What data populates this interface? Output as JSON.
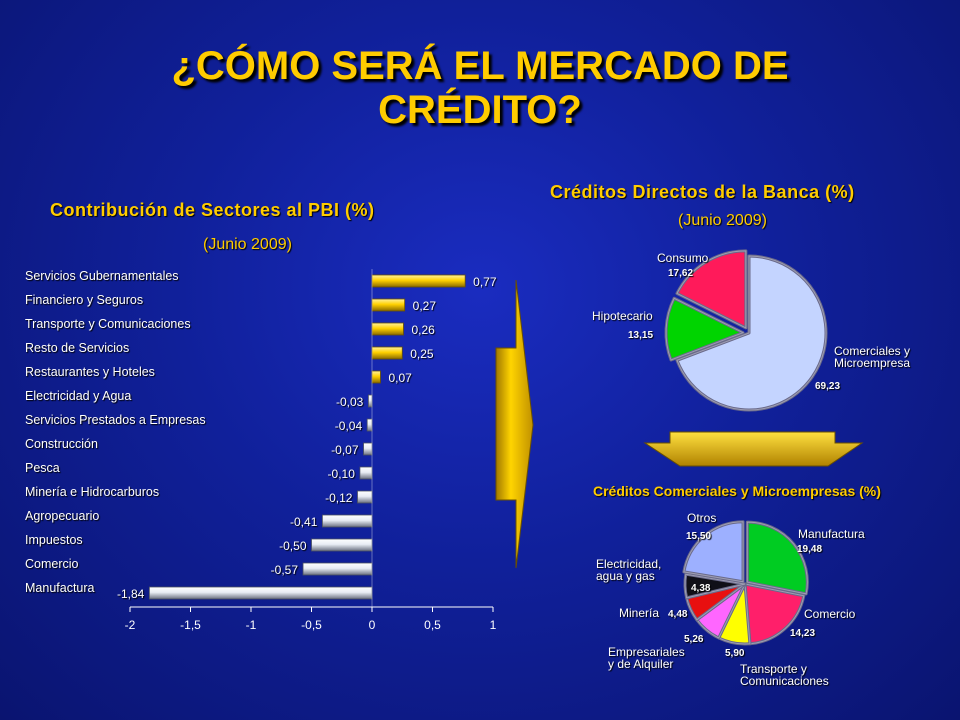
{
  "title": "¿CÓMO SERÁ EL MERCADO DE CRÉDITO?",
  "chart_data": [
    {
      "type": "bar",
      "orientation": "horizontal",
      "title": "Contribución de Sectores al PBI (%)",
      "subtitle": "(Junio 2009)",
      "categories": [
        "Servicios Gubernamentales",
        "Financiero y Seguros",
        "Transporte y Comunicaciones",
        "Resto de Servicios",
        "Restaurantes y Hoteles",
        "Electricidad y Agua",
        "Servicios Prestados a Empresas",
        "Construcción",
        "Pesca",
        "Minería e Hidrocarburos",
        "Agropecuario",
        "Impuestos",
        "Comercio",
        "Manufactura"
      ],
      "values": [
        0.77,
        0.27,
        0.26,
        0.25,
        0.07,
        -0.03,
        -0.04,
        -0.07,
        -0.1,
        -0.12,
        -0.41,
        -0.5,
        -0.57,
        -1.84
      ],
      "value_labels": [
        "0,77",
        "0,27",
        "0,26",
        "0,25",
        "0,07",
        "-0,03",
        "-0,04",
        "-0,07",
        "-0,10",
        "-0,12",
        "-0,41",
        "-0,50",
        "-0,57",
        "-1,84"
      ],
      "xlim": [
        -2,
        1
      ],
      "xticks": [
        -2,
        -1.5,
        -1,
        -0.5,
        0,
        0.5,
        1
      ],
      "xtick_labels": [
        "-2",
        "-1,5",
        "-1",
        "-0,5",
        "0",
        "0,5",
        "1"
      ],
      "colors": {
        "positive": "#ffd000",
        "negative": "#e8ecf4"
      }
    },
    {
      "type": "pie",
      "title": "Créditos Directos de la Banca (%)",
      "subtitle": "(Junio 2009)",
      "slices": [
        {
          "label": "Comerciales y Microempresa",
          "value": 69.23,
          "value_label": "69,23",
          "color": "#c4d4ff"
        },
        {
          "label": "Hipotecario",
          "value": 13.15,
          "value_label": "13,15",
          "color": "#00d400"
        },
        {
          "label": "Consumo",
          "value": 17.62,
          "value_label": "17,62",
          "color": "#ff1a5a"
        }
      ]
    },
    {
      "type": "pie",
      "title": "Créditos Comerciales y Microempresas (%)",
      "slices": [
        {
          "label": "Manufactura",
          "value": 19.48,
          "value_label": "19,48",
          "color": "#00cc22"
        },
        {
          "label": "Comercio",
          "value": 14.23,
          "value_label": "14,23",
          "color": "#ff1f6a"
        },
        {
          "label": "Transporte y Comunicaciones",
          "value": 5.9,
          "value_label": "5,90",
          "color": "#ffff00"
        },
        {
          "label": "Empresariales y de Alquiler",
          "value": 5.26,
          "value_label": "5,26",
          "color": "#ff66ff"
        },
        {
          "label": "Minería",
          "value": 4.48,
          "value_label": "4,48",
          "color": "#e81010"
        },
        {
          "label": "Electricidad, agua y gas",
          "value": 4.38,
          "value_label": "4,38",
          "color": "#101018"
        },
        {
          "label": "Otros",
          "value": 15.5,
          "value_label": "15,50",
          "color": "#9db0ff"
        }
      ]
    }
  ]
}
